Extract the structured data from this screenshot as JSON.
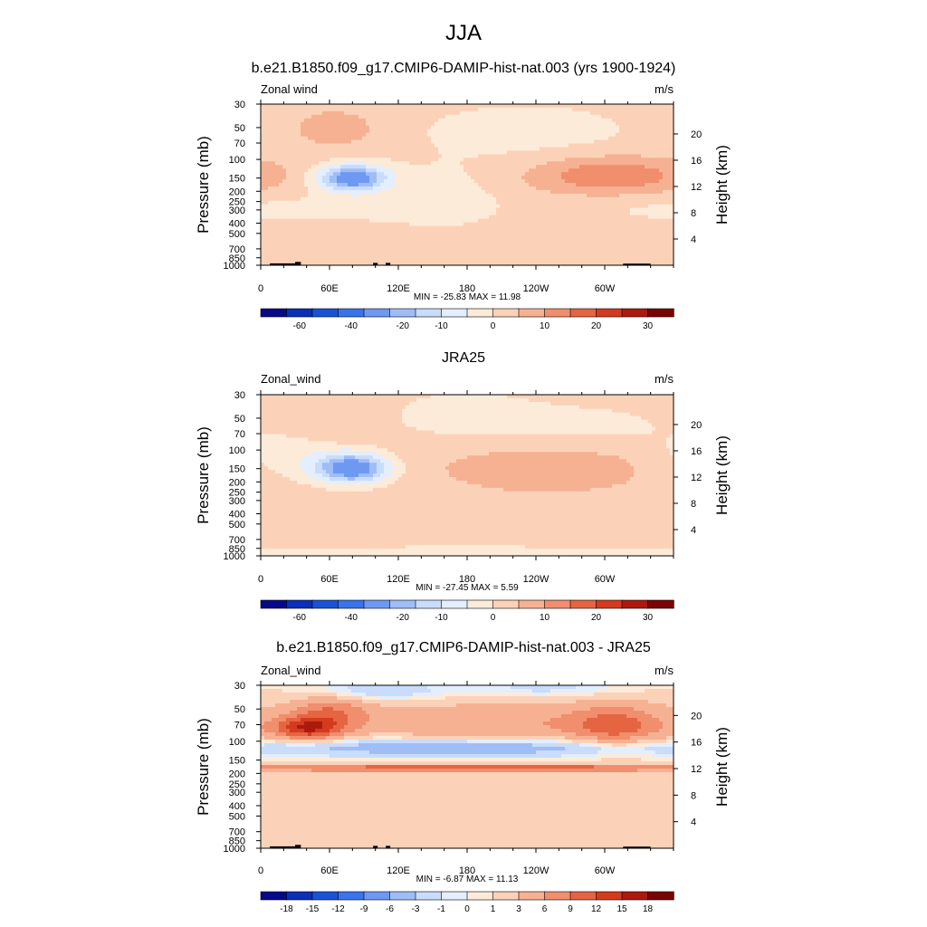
{
  "figure_title": "JJA",
  "colors": {
    "full_scale": [
      "#08088a",
      "#0a2fb8",
      "#1a52d6",
      "#3a74ea",
      "#6e99f2",
      "#9fbdf7",
      "#c9dcfb",
      "#e3eefe",
      "#fdebd9",
      "#fbd2b8",
      "#f6b192",
      "#f08e6d",
      "#e56543",
      "#d43a1e",
      "#ad1a0d",
      "#7a0403"
    ],
    "diff_scale": [
      "#08088a",
      "#0a2fb8",
      "#1a52d6",
      "#3a74ea",
      "#6e99f2",
      "#9fbdf7",
      "#c9dcfb",
      "#e3eefe",
      "#fdebd9",
      "#fbd2b8",
      "#f6b192",
      "#f08e6d",
      "#e56543",
      "#d43a1e",
      "#ad1a0d",
      "#7a0403"
    ],
    "land": "#000000"
  },
  "chart_data": [
    {
      "type": "heatmap",
      "title": "b.e21.B1850.f09_g17.CMIP6-DAMIP-hist-nat.003 (yrs 1900-1924)",
      "variable_label": "Zonal wind",
      "units": "m/s",
      "ylabel": "Pressure (mb)",
      "ylabel_right": "Height (km)",
      "x_ticks": [
        "0",
        "60E",
        "120E",
        "180",
        "120W",
        "60W"
      ],
      "y_ticks": [
        "30",
        "50",
        "70",
        "100",
        "150",
        "200",
        "250",
        "300",
        "400",
        "500",
        "700",
        "850",
        "1000"
      ],
      "y_right_ticks": [
        "20",
        "16",
        "12",
        "8",
        "4"
      ],
      "stats_text": "MIN = -25.83  MAX =  11.98",
      "min": -25.83,
      "max": 11.98,
      "colorbar_labels": [
        "-60",
        "-40",
        "-20",
        "-10",
        "0",
        "10",
        "20",
        "30"
      ],
      "features": [
        {
          "center_lon": 80,
          "center_p": 150,
          "value": -25.83
        },
        {
          "center_lon": 300,
          "center_p": 150,
          "value": 11.98
        },
        {
          "center_lon": 70,
          "center_p": 600,
          "value": 6
        }
      ],
      "show_land": true
    },
    {
      "type": "heatmap",
      "title": "JRA25",
      "variable_label": "Zonal_wind",
      "units": "m/s",
      "ylabel": "Pressure (mb)",
      "ylabel_right": "Height (km)",
      "x_ticks": [
        "0",
        "60E",
        "120E",
        "180",
        "120W",
        "60W"
      ],
      "y_ticks": [
        "30",
        "50",
        "70",
        "100",
        "150",
        "200",
        "250",
        "300",
        "400",
        "500",
        "700",
        "850",
        "1000"
      ],
      "y_right_ticks": [
        "20",
        "16",
        "12",
        "8",
        "4"
      ],
      "stats_text": "MIN = -27.45  MAX =   5.59",
      "min": -27.45,
      "max": 5.59,
      "colorbar_labels": [
        "-60",
        "-40",
        "-20",
        "-10",
        "0",
        "10",
        "20",
        "30"
      ],
      "features": [
        {
          "center_lon": 80,
          "center_p": 150,
          "value": -27.45
        },
        {
          "center_lon": 300,
          "center_p": 150,
          "value": 5.59
        }
      ],
      "show_land": false
    },
    {
      "type": "heatmap",
      "title": "b.e21.B1850.f09_g17.CMIP6-DAMIP-hist-nat.003 - JRA25",
      "variable_label": "Zonal_wind",
      "units": "m/s",
      "ylabel": "Pressure (mb)",
      "ylabel_right": "Height (km)",
      "x_ticks": [
        "0",
        "60E",
        "120E",
        "180",
        "120W",
        "60W"
      ],
      "y_ticks": [
        "30",
        "50",
        "70",
        "100",
        "150",
        "200",
        "250",
        "300",
        "400",
        "500",
        "700",
        "850",
        "1000"
      ],
      "y_right_ticks": [
        "20",
        "16",
        "12",
        "8",
        "4"
      ],
      "stats_text": "MIN =  -6.87  MAX =  11.13",
      "min": -6.87,
      "max": 11.13,
      "colorbar_labels": [
        "-18",
        "-15",
        "-12",
        "-9",
        "-6",
        "-3",
        "-1",
        "0",
        "1",
        "3",
        "6",
        "9",
        "12",
        "15",
        "18"
      ],
      "features": [
        {
          "center_lon": 185,
          "center_p": 70,
          "value": -6.87
        },
        {
          "center_lon": 40,
          "center_p": 150,
          "value": 11.13
        },
        {
          "center_lon": 310,
          "center_p": 160,
          "value": 9
        }
      ],
      "show_land": true
    }
  ]
}
